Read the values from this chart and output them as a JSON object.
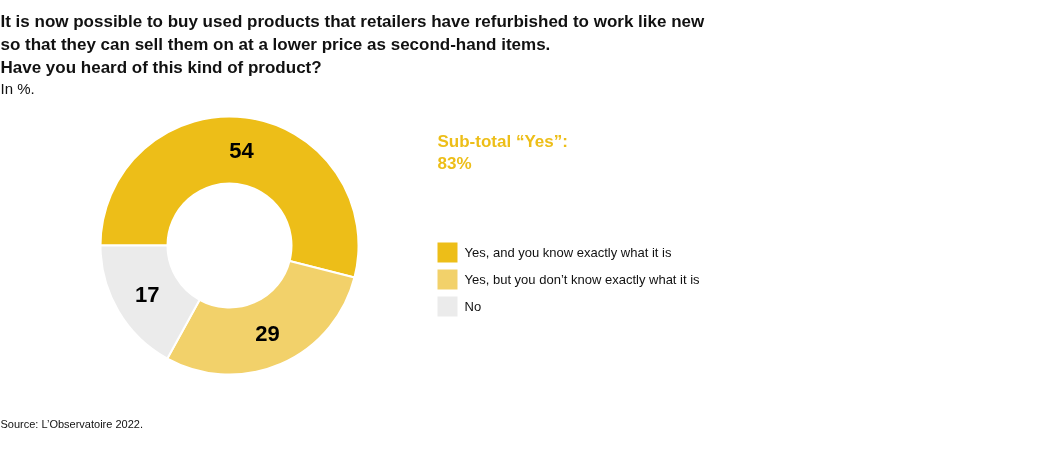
{
  "chart_data": {
    "type": "donut",
    "title": "It is now possible to buy used products that retailers have refurbished to work like new\nso that they can sell them on at a lower price as second-hand items.\nHave you heard of this kind of product?",
    "subtitle": "In %.",
    "categories": [
      "Yes, and you know exactly what it is",
      "Yes, but you don’t know exactly what it is",
      "No"
    ],
    "values": [
      54,
      29,
      17
    ],
    "colors": [
      "#edbe18",
      "#f2d16a",
      "#ebebeb"
    ],
    "data_labels": true,
    "legend": "right",
    "annotations": [
      "Sub-total “Yes”:\n83%",
      "Source: L’Observatoire 2022."
    ]
  }
}
